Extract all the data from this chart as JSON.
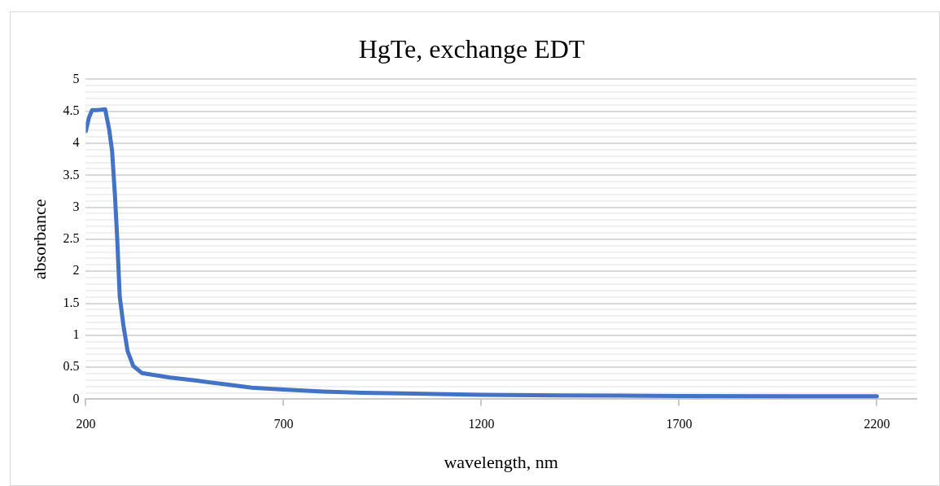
{
  "chart_data": {
    "type": "line",
    "title": "HgTe, exchange EDT",
    "xlabel": "wavelength, nm",
    "ylabel": "absorbance",
    "x": [
      200,
      208,
      216,
      230,
      249,
      259,
      266.5,
      273.6,
      279.4,
      285.8,
      295,
      305.8,
      320,
      341.6,
      413,
      480,
      556,
      620,
      700,
      800,
      900,
      1000,
      1200,
      1400,
      1700,
      2000,
      2200
    ],
    "series": [
      {
        "color": "#4472c4",
        "values": [
          4.19,
          4.4,
          4.52,
          4.52,
          4.53,
          4.22,
          3.88,
          3.2,
          2.52,
          1.61,
          1.16,
          0.75,
          0.52,
          0.41,
          0.34,
          0.29,
          0.23,
          0.18,
          0.15,
          0.12,
          0.1,
          0.09,
          0.07,
          0.06,
          0.05,
          0.045,
          0.045
        ]
      }
    ],
    "xlim": [
      200,
      2300
    ],
    "xticks": [
      200,
      700,
      1200,
      1700,
      2200
    ],
    "ylim": [
      0,
      5
    ],
    "yticks": [
      0,
      {
        "value": 0.1,
        "label": null
      },
      {
        "value": 0.2,
        "label": null
      },
      {
        "value": 0.3,
        "label": null
      },
      {
        "value": 0.4,
        "label": null
      },
      0.5,
      {
        "value": 0.6,
        "label": null
      },
      {
        "value": 0.7,
        "label": null
      },
      {
        "value": 0.8,
        "label": null
      },
      {
        "value": 0.9,
        "label": null
      },
      1,
      {
        "value": 1.1,
        "label": null
      },
      {
        "value": 1.2,
        "label": null
      },
      {
        "value": 1.3,
        "label": null
      },
      {
        "value": 1.4,
        "label": null
      },
      1.5,
      {
        "value": 1.6,
        "label": null
      },
      {
        "value": 1.7,
        "label": null
      },
      {
        "value": 1.8,
        "label": null
      },
      {
        "value": 1.9,
        "label": null
      },
      2,
      {
        "value": 2.1,
        "label": null
      },
      {
        "value": 2.2,
        "label": null
      },
      {
        "value": 2.3,
        "label": null
      },
      {
        "value": 2.4,
        "label": null
      },
      2.5,
      {
        "value": 2.6,
        "label": null
      },
      {
        "value": 2.7,
        "label": null
      },
      {
        "value": 2.8,
        "label": null
      },
      {
        "value": 2.9,
        "label": null
      },
      3,
      {
        "value": 3.1,
        "label": null
      },
      {
        "value": 3.2,
        "label": null
      },
      {
        "value": 3.3,
        "label": null
      },
      {
        "value": 3.4,
        "label": null
      },
      3.5,
      {
        "value": 3.6,
        "label": null
      },
      {
        "value": 3.7,
        "label": null
      },
      {
        "value": 3.8,
        "label": null
      },
      {
        "value": 3.9,
        "label": null
      },
      4,
      {
        "value": 4.1,
        "label": null
      },
      {
        "value": 4.2,
        "label": null
      },
      {
        "value": 4.3,
        "label": null
      },
      {
        "value": 4.4,
        "label": null
      },
      4.5,
      {
        "value": 4.6,
        "label": null
      },
      {
        "value": 4.7,
        "label": null
      },
      {
        "value": 4.8,
        "label": null
      },
      {
        "value": 4.9,
        "label": null
      },
      5
    ],
    "grid": "y",
    "legend": false,
    "marker": "none",
    "line_style": "solid"
  }
}
